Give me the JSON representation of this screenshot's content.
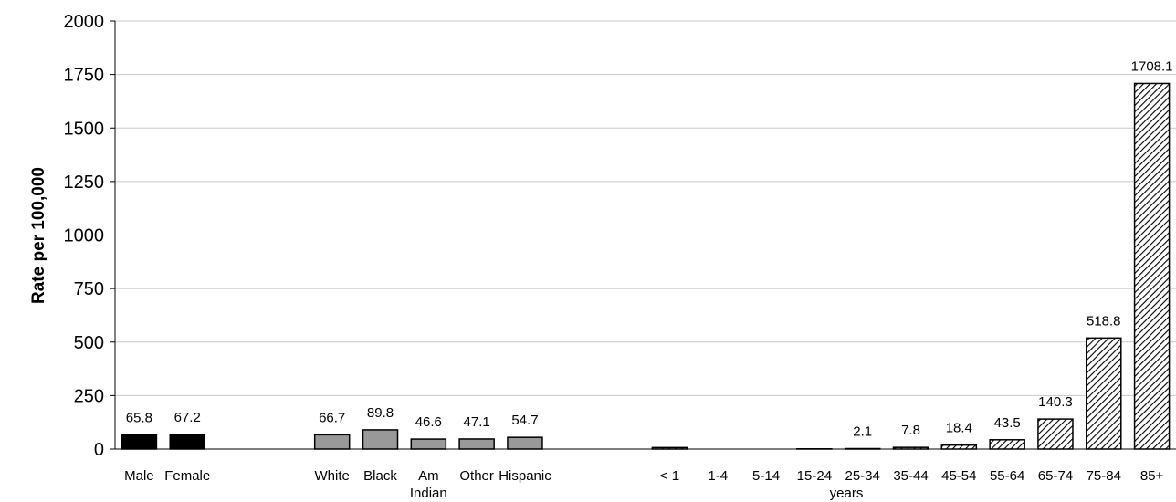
{
  "chart_data": {
    "type": "bar",
    "title": "",
    "xlabel": "",
    "ylabel": "Rate per 100,000",
    "ylim": [
      0,
      2000
    ],
    "yticks": [
      0,
      250,
      500,
      750,
      1000,
      1250,
      1500,
      1750,
      2000
    ],
    "grid": true,
    "legend": "none",
    "age_axis_note": "years",
    "groups": [
      {
        "name": "sex",
        "fill": "#000000",
        "pattern": "solid",
        "bars": [
          {
            "category": "Male",
            "value": 65.8,
            "label": "65.8"
          },
          {
            "category": "Female",
            "value": 67.2,
            "label": "67.2"
          }
        ]
      },
      {
        "name": "race",
        "fill": "#999999",
        "pattern": "solid",
        "bars": [
          {
            "category": "White",
            "value": 66.7,
            "label": "66.7"
          },
          {
            "category": "Black",
            "value": 89.8,
            "label": "89.8"
          },
          {
            "category": "Am Indian",
            "value": 46.6,
            "label": "46.6"
          },
          {
            "category": "Other",
            "value": 47.1,
            "label": "47.1"
          },
          {
            "category": "Hispanic",
            "value": 54.7,
            "label": "54.7"
          }
        ]
      },
      {
        "name": "age",
        "fill": "#000000",
        "pattern": "diagonal-hatch",
        "bars": [
          {
            "category": "< 1",
            "value": 7,
            "label": ""
          },
          {
            "category": "1-4",
            "value": 0,
            "label": ""
          },
          {
            "category": "5-14",
            "value": 0,
            "label": ""
          },
          {
            "category": "15-24",
            "value": 1,
            "label": ""
          },
          {
            "category": "25-34",
            "value": 2.1,
            "label": "2.1"
          },
          {
            "category": "35-44",
            "value": 7.8,
            "label": "7.8"
          },
          {
            "category": "45-54",
            "value": 18.4,
            "label": "18.4"
          },
          {
            "category": "55-64",
            "value": 43.5,
            "label": "43.5"
          },
          {
            "category": "65-74",
            "value": 140.3,
            "label": "140.3"
          },
          {
            "category": "75-84",
            "value": 518.8,
            "label": "518.8"
          },
          {
            "category": "85+",
            "value": 1708.1,
            "label": "1708.1"
          }
        ]
      }
    ]
  }
}
